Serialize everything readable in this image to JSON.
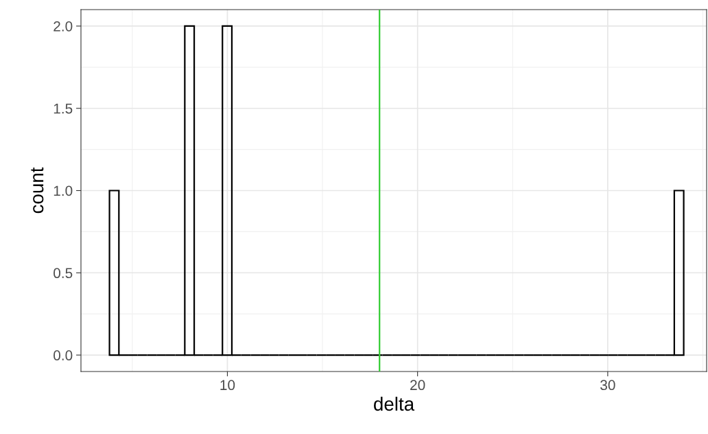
{
  "chart_data": {
    "type": "histogram",
    "xlabel": "delta",
    "ylabel": "count",
    "bins": [
      3.8,
      4.295,
      4.79,
      5.285,
      5.78,
      6.275,
      6.77,
      7.265,
      7.76,
      8.255,
      8.75,
      9.245,
      9.74,
      10.235,
      10.73,
      11.225,
      11.72,
      12.215,
      12.71,
      13.205,
      13.7,
      14.195,
      14.69,
      15.185,
      15.68,
      16.175,
      16.67,
      17.165,
      17.66,
      18.155,
      18.65,
      19.145,
      19.64,
      20.135,
      20.63,
      21.125,
      21.62,
      22.115,
      22.61,
      23.105,
      23.6,
      24.095,
      24.59,
      25.085,
      25.58,
      26.075,
      26.57,
      27.065,
      27.56,
      28.055,
      28.55,
      29.045,
      29.54,
      30.035,
      30.53,
      31.025,
      31.52,
      32.015,
      32.51,
      33.005,
      33.5,
      33.995
    ],
    "values": [
      1,
      0,
      0,
      0,
      0,
      0,
      0,
      0,
      2,
      0,
      0,
      0,
      2,
      0,
      0,
      0,
      0,
      0,
      0,
      0,
      0,
      0,
      0,
      0,
      0,
      0,
      0,
      0,
      0,
      0,
      0,
      0,
      0,
      0,
      0,
      0,
      0,
      0,
      0,
      0,
      0,
      0,
      0,
      0,
      0,
      0,
      0,
      0,
      0,
      0,
      0,
      0,
      0,
      0,
      0,
      0,
      0,
      0,
      0,
      0,
      1
    ],
    "color": "#000000",
    "xlim": [
      2.3,
      35.2
    ],
    "xticks": [
      10,
      20,
      30
    ],
    "ylim": [
      -0.1,
      2.1
    ],
    "yticks": [
      {
        "value": 0,
        "label": "0.0"
      },
      {
        "value": 0.5,
        "label": "0.5"
      },
      {
        "value": 1,
        "label": "1.0"
      },
      {
        "value": 1.5,
        "label": "1.5"
      },
      {
        "value": 2,
        "label": "2.0"
      }
    ],
    "grid": true,
    "ref_lines": [
      {
        "axis": "x",
        "value": 18,
        "color": "#33cc33"
      }
    ]
  }
}
